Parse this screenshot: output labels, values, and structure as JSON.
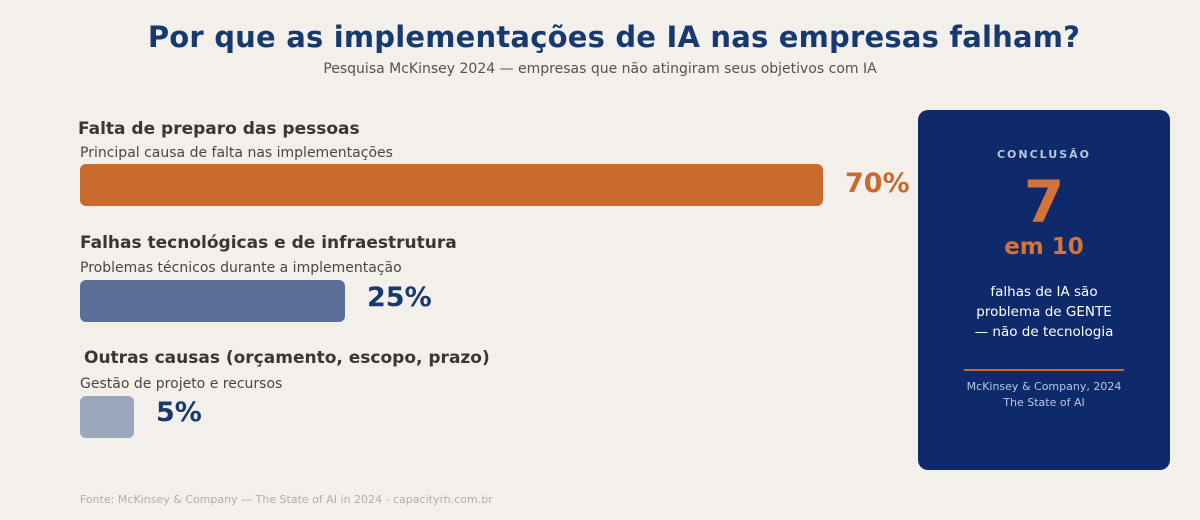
{
  "title": "Por que as implementações de IA nas empresas falham?",
  "subtitle": "Pesquisa McKinsey 2024 — empresas que não atingiram seus objetivos com IA",
  "chart_data": {
    "type": "bar",
    "orientation": "horizontal",
    "categories": [
      "Falta de preparo das pessoas",
      "Falhas tecnológicas e de infraestrutura",
      "Outras causas (orçamento, escopo, prazo)"
    ],
    "descriptions": [
      "Principal causa de falta nas implementações",
      "Problemas técnicos durante a implementação",
      "Gestão de projeto e recursos"
    ],
    "values": [
      70,
      25,
      5
    ],
    "value_labels": [
      "70%",
      "25%",
      "5%"
    ],
    "bar_colors": [
      "#c96a2f",
      "#5b6e98",
      "#9aa6bb"
    ],
    "label_colors": [
      "#c96a2f",
      "#16396f",
      "#16396f"
    ],
    "xlim": [
      0,
      70
    ]
  },
  "conclusion": {
    "label": "CONCLUSÃO",
    "big_number": "7",
    "sub": "em 10",
    "text": "falhas de IA são problema de GENTE — não de tecnologia",
    "source_line1": "McKinsey & Company, 2024",
    "source_line2": "The State of AI"
  },
  "footer": "Fonte: McKinsey & Company — The State of AI in 2024 - capacityrh.com.br",
  "colors": {
    "background": "#f3f0ec",
    "navy": "#0e2a6b",
    "title": "#16396f",
    "orange": "#c96a2f"
  }
}
